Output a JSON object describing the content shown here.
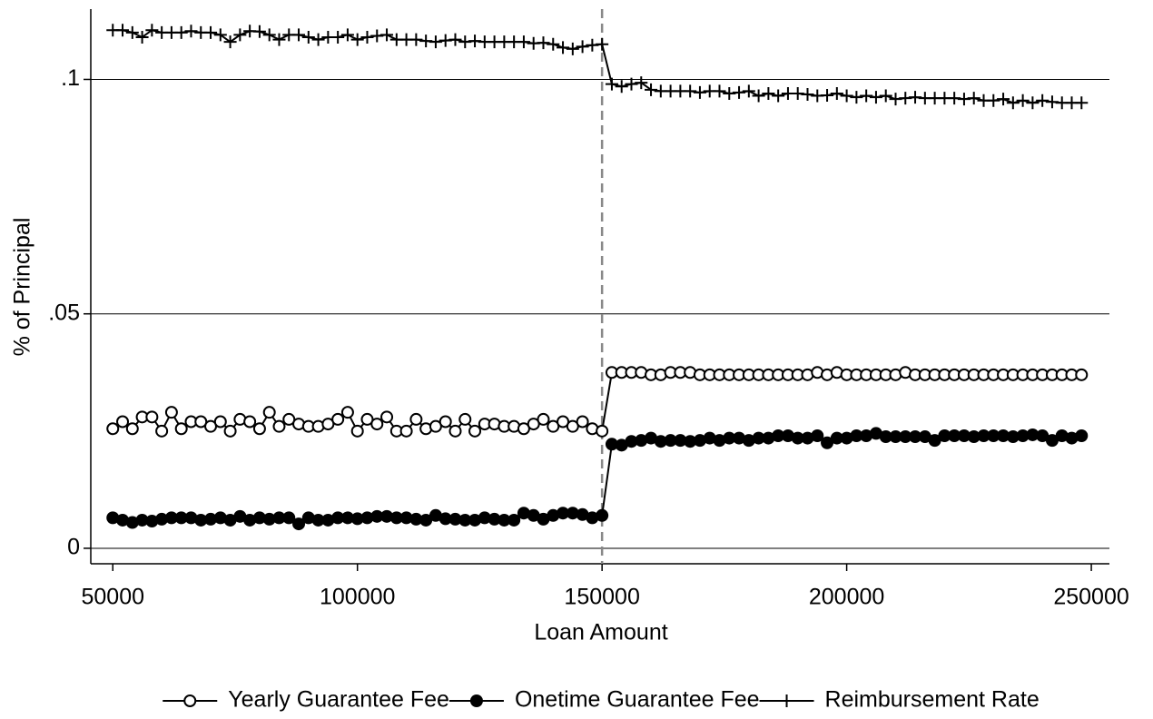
{
  "chart_data": {
    "type": "line",
    "x_label": "Loan Amount",
    "y_label": "% of Principal",
    "x": [
      50000,
      52000,
      54000,
      56000,
      58000,
      60000,
      62000,
      64000,
      66000,
      68000,
      70000,
      72000,
      74000,
      76000,
      78000,
      80000,
      82000,
      84000,
      86000,
      88000,
      90000,
      92000,
      94000,
      96000,
      98000,
      100000,
      102000,
      104000,
      106000,
      108000,
      110000,
      112000,
      114000,
      116000,
      118000,
      120000,
      122000,
      124000,
      126000,
      128000,
      130000,
      132000,
      134000,
      136000,
      138000,
      140000,
      142000,
      144000,
      146000,
      148000,
      150000,
      152000,
      154000,
      156000,
      158000,
      160000,
      162000,
      164000,
      166000,
      168000,
      170000,
      172000,
      174000,
      176000,
      178000,
      180000,
      182000,
      184000,
      186000,
      188000,
      190000,
      192000,
      194000,
      196000,
      198000,
      200000,
      202000,
      204000,
      206000,
      208000,
      210000,
      212000,
      214000,
      216000,
      218000,
      220000,
      222000,
      224000,
      226000,
      228000,
      230000,
      232000,
      234000,
      236000,
      238000,
      240000,
      242000,
      244000,
      246000,
      248000
    ],
    "series": [
      {
        "name": "Yearly Guarantee Fee",
        "color": "#000000",
        "marker": "hollow-circle",
        "values": [
          0.0255,
          0.027,
          0.0255,
          0.028,
          0.028,
          0.025,
          0.029,
          0.0255,
          0.027,
          0.027,
          0.026,
          0.027,
          0.025,
          0.0275,
          0.027,
          0.0255,
          0.029,
          0.026,
          0.0275,
          0.0265,
          0.026,
          0.026,
          0.0265,
          0.0275,
          0.029,
          0.025,
          0.0275,
          0.0265,
          0.028,
          0.025,
          0.025,
          0.0275,
          0.0255,
          0.026,
          0.027,
          0.025,
          0.0275,
          0.025,
          0.0265,
          0.0265,
          0.026,
          0.026,
          0.0255,
          0.0265,
          0.0275,
          0.026,
          0.027,
          0.026,
          0.027,
          0.0255,
          0.025,
          0.0375,
          0.0375,
          0.0375,
          0.0375,
          0.037,
          0.037,
          0.0375,
          0.0375,
          0.0375,
          0.037,
          0.037,
          0.037,
          0.037,
          0.037,
          0.037,
          0.037,
          0.037,
          0.037,
          0.037,
          0.037,
          0.037,
          0.0375,
          0.037,
          0.0375,
          0.037,
          0.037,
          0.037,
          0.037,
          0.037,
          0.037,
          0.0375,
          0.037,
          0.037,
          0.037,
          0.037,
          0.037,
          0.037,
          0.037,
          0.037,
          0.037,
          0.037,
          0.037,
          0.037,
          0.037,
          0.037,
          0.037,
          0.037,
          0.037,
          0.037
        ]
      },
      {
        "name": "Onetime Guarantee Fee",
        "color": "#000000",
        "marker": "filled-circle",
        "values": [
          0.0065,
          0.006,
          0.0055,
          0.006,
          0.0058,
          0.0062,
          0.0065,
          0.0065,
          0.0065,
          0.006,
          0.0062,
          0.0065,
          0.006,
          0.0068,
          0.006,
          0.0065,
          0.0062,
          0.0065,
          0.0065,
          0.0052,
          0.0065,
          0.006,
          0.006,
          0.0065,
          0.0065,
          0.0063,
          0.0065,
          0.0068,
          0.0068,
          0.0065,
          0.0065,
          0.0062,
          0.006,
          0.007,
          0.0063,
          0.0062,
          0.006,
          0.006,
          0.0065,
          0.0062,
          0.006,
          0.006,
          0.0075,
          0.007,
          0.0062,
          0.007,
          0.0075,
          0.0075,
          0.0072,
          0.0065,
          0.007,
          0.0222,
          0.022,
          0.0228,
          0.023,
          0.0235,
          0.0228,
          0.023,
          0.023,
          0.0228,
          0.023,
          0.0235,
          0.023,
          0.0235,
          0.0235,
          0.023,
          0.0235,
          0.0235,
          0.024,
          0.024,
          0.0235,
          0.0235,
          0.024,
          0.0225,
          0.0235,
          0.0235,
          0.024,
          0.024,
          0.0245,
          0.0238,
          0.0238,
          0.0238,
          0.0238,
          0.0238,
          0.023,
          0.024,
          0.024,
          0.024,
          0.0238,
          0.024,
          0.024,
          0.024,
          0.0238,
          0.024,
          0.0242,
          0.024,
          0.023,
          0.024,
          0.0235,
          0.024
        ]
      },
      {
        "name": "Reimbursement Rate",
        "color": "#000000",
        "marker": "plus",
        "values": [
          0.1105,
          0.1105,
          0.11,
          0.109,
          0.1105,
          0.11,
          0.11,
          0.11,
          0.1103,
          0.11,
          0.11,
          0.1095,
          0.108,
          0.1095,
          0.1103,
          0.1102,
          0.1095,
          0.1085,
          0.1095,
          0.1095,
          0.109,
          0.1085,
          0.109,
          0.109,
          0.1095,
          0.1085,
          0.109,
          0.1093,
          0.1095,
          0.1085,
          0.1085,
          0.1085,
          0.1082,
          0.108,
          0.1083,
          0.1085,
          0.108,
          0.1082,
          0.108,
          0.108,
          0.108,
          0.108,
          0.108,
          0.1077,
          0.1078,
          0.1075,
          0.1068,
          0.1065,
          0.107,
          0.1073,
          0.1075,
          0.099,
          0.0985,
          0.099,
          0.0993,
          0.0978,
          0.0975,
          0.0975,
          0.0975,
          0.0975,
          0.0972,
          0.0975,
          0.0975,
          0.097,
          0.0972,
          0.0975,
          0.0965,
          0.097,
          0.0965,
          0.097,
          0.097,
          0.0968,
          0.0965,
          0.0966,
          0.097,
          0.0965,
          0.0962,
          0.0965,
          0.0962,
          0.0965,
          0.0958,
          0.096,
          0.0962,
          0.096,
          0.096,
          0.096,
          0.096,
          0.0958,
          0.096,
          0.0955,
          0.0955,
          0.0958,
          0.095,
          0.0955,
          0.095,
          0.0955,
          0.0952,
          0.095,
          0.095,
          0.095
        ]
      }
    ],
    "xlim": [
      45500,
      253700
    ],
    "ylim": [
      -0.0033,
      0.115
    ],
    "xticks": [
      50000,
      100000,
      150000,
      200000,
      250000
    ],
    "yticks": [
      0,
      {
        "value": 0.05,
        "label": ".05"
      },
      {
        "value": 0.1,
        "label": ".1"
      }
    ],
    "xline": 150000,
    "grid": true,
    "legend": "bottom"
  }
}
